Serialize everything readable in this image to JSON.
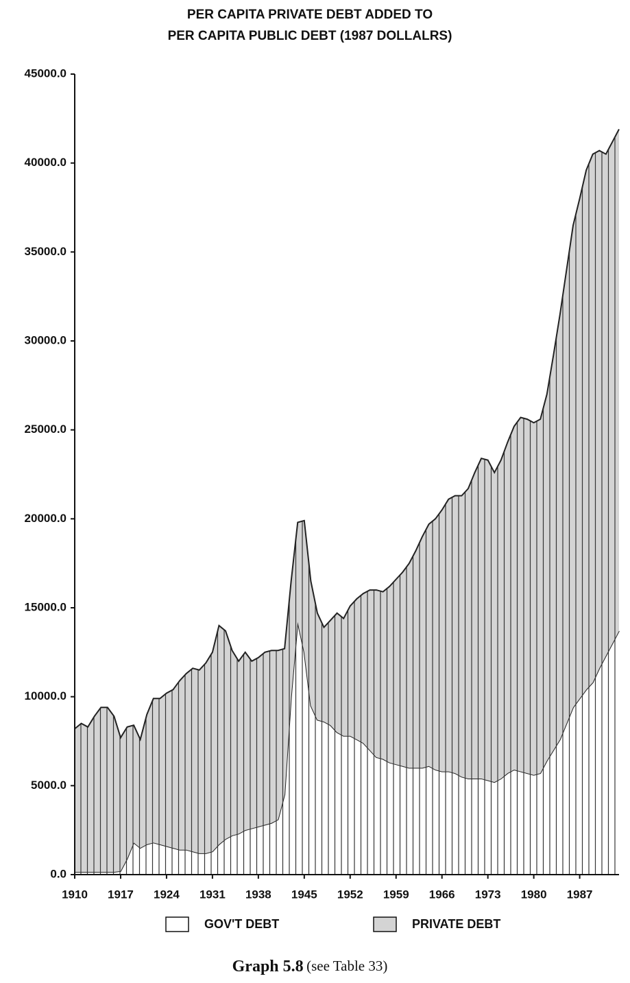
{
  "chart_data": {
    "type": "stacked-area",
    "title": [
      "PER CAPITA PRIVATE DEBT ADDED TO",
      "PER CAPITA PUBLIC DEBT (1987 DOLLALRS)"
    ],
    "caption_label": "Graph 5.8",
    "caption_note": "(see Table 33)",
    "x": [
      1910,
      1911,
      1912,
      1913,
      1914,
      1915,
      1916,
      1917,
      1918,
      1919,
      1920,
      1921,
      1922,
      1923,
      1924,
      1925,
      1926,
      1927,
      1928,
      1929,
      1930,
      1931,
      1932,
      1933,
      1934,
      1935,
      1936,
      1937,
      1938,
      1939,
      1940,
      1941,
      1942,
      1943,
      1944,
      1945,
      1946,
      1947,
      1948,
      1949,
      1950,
      1951,
      1952,
      1953,
      1954,
      1955,
      1956,
      1957,
      1958,
      1959,
      1960,
      1961,
      1962,
      1963,
      1964,
      1965,
      1966,
      1967,
      1968,
      1969,
      1970,
      1971,
      1972,
      1973,
      1974,
      1975,
      1976,
      1977,
      1978,
      1979,
      1980,
      1981,
      1982,
      1983,
      1984,
      1985,
      1986,
      1987,
      1988,
      1989,
      1990,
      1991,
      1992,
      1993
    ],
    "series": [
      {
        "name": "GOV'T DEBT",
        "color": "#ffffff",
        "values": [
          150,
          150,
          150,
          150,
          150,
          150,
          150,
          200,
          900,
          1800,
          1500,
          1700,
          1800,
          1700,
          1600,
          1500,
          1400,
          1400,
          1300,
          1200,
          1200,
          1300,
          1700,
          2000,
          2200,
          2300,
          2500,
          2600,
          2700,
          2800,
          2900,
          3100,
          4500,
          10000,
          14200,
          12500,
          9500,
          8700,
          8600,
          8400,
          8000,
          7800,
          7800,
          7600,
          7400,
          7000,
          6600,
          6500,
          6300,
          6200,
          6100,
          6000,
          6000,
          6000,
          6100,
          5900,
          5800,
          5800,
          5700,
          5500,
          5400,
          5400,
          5400,
          5300,
          5200,
          5400,
          5700,
          5900,
          5800,
          5700,
          5600,
          5700,
          6400,
          7000,
          7600,
          8500,
          9400,
          9900,
          10400,
          10800,
          11600,
          12300,
          13000,
          13700
        ]
      },
      {
        "name": "PRIVATE DEBT",
        "color": "#d4d4d4",
        "values": [
          8050,
          8350,
          8150,
          8750,
          9250,
          9250,
          8750,
          7500,
          7400,
          6600,
          6100,
          7300,
          8100,
          8200,
          8600,
          8900,
          9500,
          9900,
          10300,
          10300,
          10700,
          11200,
          12300,
          11700,
          10400,
          9700,
          10000,
          9400,
          9500,
          9700,
          9700,
          9500,
          8200,
          6500,
          5600,
          7400,
          7000,
          6000,
          5300,
          5900,
          6700,
          6600,
          7300,
          7900,
          8400,
          9000,
          9400,
          9400,
          9900,
          10400,
          10900,
          11500,
          12200,
          13000,
          13600,
          14100,
          14700,
          15300,
          15600,
          15800,
          16300,
          17200,
          18000,
          18000,
          17400,
          17900,
          18600,
          19300,
          19900,
          19900,
          19800,
          19900,
          20600,
          22200,
          23900,
          25500,
          27100,
          28100,
          29200,
          29700,
          29100,
          28200,
          28200,
          28200
        ]
      }
    ],
    "xlim": [
      1910,
      1993
    ],
    "xticks": [
      1910,
      1917,
      1924,
      1931,
      1938,
      1945,
      1952,
      1959,
      1966,
      1973,
      1980,
      1987
    ],
    "ylim": [
      0,
      45000
    ],
    "yticks": [
      {
        "value": 0,
        "label": "0.0"
      },
      {
        "value": 5000,
        "label": "5000.0"
      },
      {
        "value": 10000,
        "label": "10000.0"
      },
      {
        "value": 15000,
        "label": "15000.0"
      },
      {
        "value": 20000,
        "label": "20000.0"
      },
      {
        "value": 25000,
        "label": "25000.0"
      },
      {
        "value": 30000,
        "label": "30000.0"
      },
      {
        "value": 35000,
        "label": "35000.0"
      },
      {
        "value": 40000,
        "label": "40000.0"
      },
      {
        "value": 45000,
        "label": "45000.0"
      }
    ],
    "hatch": true
  }
}
